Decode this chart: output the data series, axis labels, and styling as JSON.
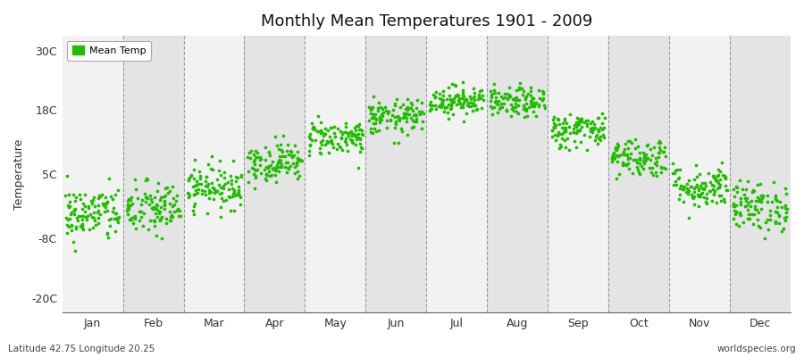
{
  "title": "Monthly Mean Temperatures 1901 - 2009",
  "ylabel": "Temperature",
  "subtitle_left": "Latitude 42.75 Longitude 20.25",
  "subtitle_right": "worldspecies.org",
  "legend_label": "Mean Temp",
  "dot_color": "#22bb00",
  "band_color_light": "#f2f2f2",
  "band_color_dark": "#e4e4e4",
  "yticks": [
    -20,
    -8,
    5,
    18,
    30
  ],
  "ytick_labels": [
    "-20C",
    "-8C",
    "5C",
    "18C",
    "30C"
  ],
  "ylim": [
    -23,
    33
  ],
  "months": [
    "Jan",
    "Feb",
    "Mar",
    "Apr",
    "May",
    "Jun",
    "Jul",
    "Aug",
    "Sep",
    "Oct",
    "Nov",
    "Dec"
  ],
  "mean_temps": [
    -3.0,
    -2.0,
    2.5,
    7.5,
    12.5,
    16.5,
    20.0,
    19.5,
    14.0,
    8.5,
    2.5,
    -1.5
  ],
  "spread": [
    2.8,
    2.8,
    2.2,
    2.0,
    1.8,
    1.8,
    1.5,
    1.5,
    1.8,
    2.0,
    2.2,
    2.5
  ],
  "n_years": 109,
  "dot_size": 7,
  "random_seed": 42
}
